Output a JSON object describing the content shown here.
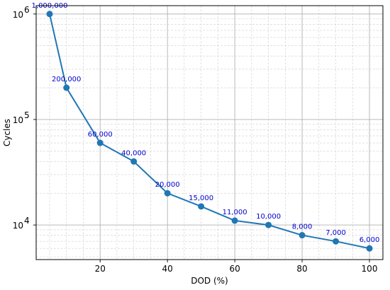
{
  "chart_data": {
    "type": "line",
    "xlabel": "DOD (%)",
    "ylabel": "Cycles",
    "y_scale": "log",
    "xlim": [
      1,
      104
    ],
    "ylim": [
      4700,
      1200000
    ],
    "grid": true,
    "grid_minor": true,
    "x_ticks": [
      {
        "value": 20,
        "label": "20"
      },
      {
        "value": 40,
        "label": "40"
      },
      {
        "value": 60,
        "label": "60"
      },
      {
        "value": 80,
        "label": "80"
      },
      {
        "value": 100,
        "label": "100"
      }
    ],
    "y_ticks": [
      {
        "value": 10000,
        "base": "10",
        "exp": "4"
      },
      {
        "value": 100000,
        "base": "10",
        "exp": "5"
      },
      {
        "value": 1000000,
        "base": "10",
        "exp": "6"
      }
    ],
    "line_color": "#1f77b4",
    "label_color": "#0000cc",
    "series": [
      {
        "points": [
          {
            "x": 5,
            "y": 1000000,
            "label": "1,000,000"
          },
          {
            "x": 10,
            "y": 200000,
            "label": "200,000"
          },
          {
            "x": 20,
            "y": 60000,
            "label": "60,000"
          },
          {
            "x": 30,
            "y": 40000,
            "label": "40,000"
          },
          {
            "x": 40,
            "y": 20000,
            "label": "20,000"
          },
          {
            "x": 50,
            "y": 15000,
            "label": "15,000"
          },
          {
            "x": 60,
            "y": 11000,
            "label": "11,000"
          },
          {
            "x": 70,
            "y": 10000,
            "label": "10,000"
          },
          {
            "x": 80,
            "y": 8000,
            "label": "8,000"
          },
          {
            "x": 90,
            "y": 7000,
            "label": "7,000"
          },
          {
            "x": 100,
            "y": 6000,
            "label": "6,000"
          }
        ]
      }
    ]
  }
}
